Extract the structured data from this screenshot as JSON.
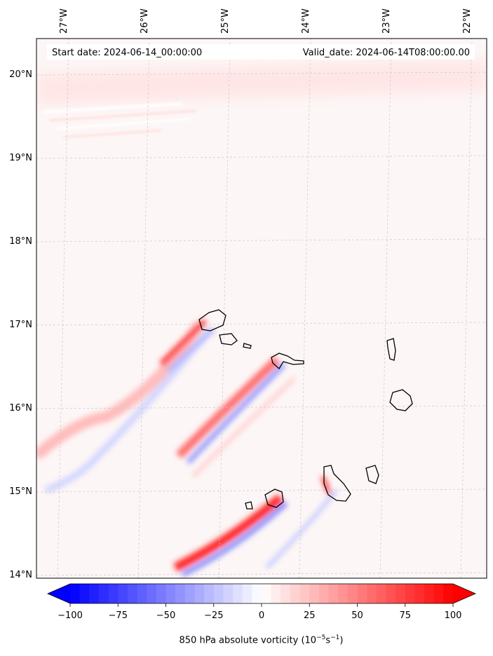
{
  "header": {
    "start_date": "Start date: 2024-06-14_00:00:00",
    "valid_date": "Valid_date: 2024-06-14T08:00:00.00"
  },
  "map": {
    "lon_labels": [
      {
        "lon": -27,
        "label": "27°W"
      },
      {
        "lon": -26,
        "label": "26°W"
      },
      {
        "lon": -25,
        "label": "25°W"
      },
      {
        "lon": -24,
        "label": "24°W"
      },
      {
        "lon": -23,
        "label": "23°W"
      },
      {
        "lon": -22,
        "label": "22°W"
      }
    ],
    "lat_labels": [
      {
        "lat": 20,
        "label": "20°N"
      },
      {
        "lat": 19,
        "label": "19°N"
      },
      {
        "lat": 18,
        "label": "18°N"
      },
      {
        "lat": 17,
        "label": "17°N"
      },
      {
        "lat": 16,
        "label": "16°N"
      },
      {
        "lat": 15,
        "label": "15°N"
      },
      {
        "lat": 14,
        "label": "14°N"
      }
    ],
    "field": "850 hPa absolute vorticity",
    "gridlines": true,
    "coastline_color": "#000000"
  },
  "colorbar": {
    "min": -100,
    "max": 100,
    "ticks": [
      {
        "value": -100,
        "label": "−100"
      },
      {
        "value": -75,
        "label": "−75"
      },
      {
        "value": -50,
        "label": "−50"
      },
      {
        "value": -25,
        "label": "−25"
      },
      {
        "value": 0,
        "label": "0"
      },
      {
        "value": 25,
        "label": "25"
      },
      {
        "value": 50,
        "label": "50"
      },
      {
        "value": 75,
        "label": "75"
      },
      {
        "value": 100,
        "label": "100"
      }
    ],
    "label_main": "850 hPa absolute vorticity (10",
    "label_exp1": "−5",
    "label_mid": "s",
    "label_exp2": "−1",
    "label_end": ")",
    "color_negative": "#0000ff",
    "color_zero": "#ffffff",
    "color_positive": "#ff0000",
    "extend": "both"
  }
}
